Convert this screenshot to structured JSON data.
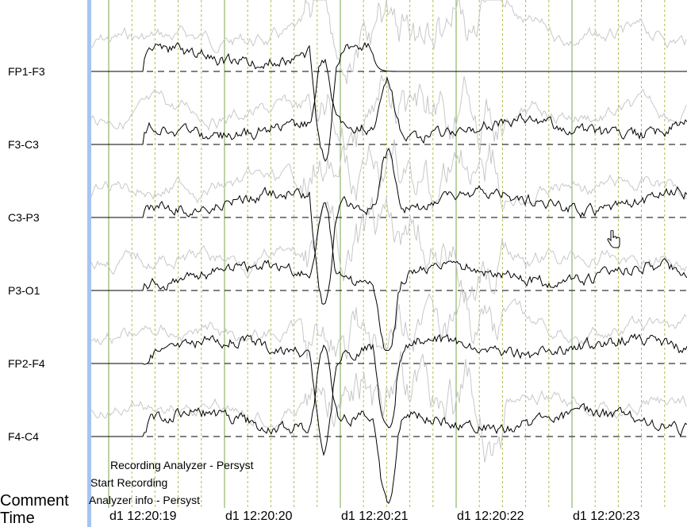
{
  "channels": [
    {
      "label": "FP1-F3"
    },
    {
      "label": "F3-C3"
    },
    {
      "label": "C3-P3"
    },
    {
      "label": "P3-O1"
    },
    {
      "label": "FP2-F4"
    },
    {
      "label": "F4-C4"
    }
  ],
  "comments": [
    {
      "text": "Recording Analyzer - Persyst"
    },
    {
      "text": "Start Recording"
    },
    {
      "text": "Analyzer info - Persyst"
    }
  ],
  "rows": {
    "comment_label": "Comment",
    "time_label": "Time"
  },
  "time_marks": [
    {
      "label": "d1 12:20:19"
    },
    {
      "label": "d1 12:20:20"
    },
    {
      "label": "d1 12:20:21"
    },
    {
      "label": "d1 12:20:22"
    },
    {
      "label": "d1 12:20:23"
    }
  ],
  "colors": {
    "trace": "#000000",
    "ghost_trace": "#c8c8c8",
    "second_grid": "#7aa64a",
    "sub_grid": "#b8b84a",
    "baseline": "#000000",
    "montage_bar": "#a6c4f0"
  },
  "icons": {
    "cursor": "hand-pointer-icon"
  }
}
